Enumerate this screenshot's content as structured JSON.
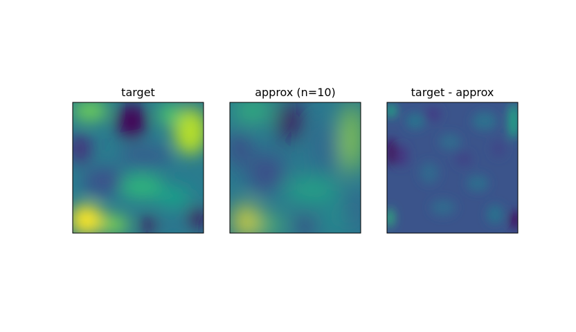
{
  "chart_data": [
    {
      "type": "heatmap",
      "title": "target",
      "colormap": "viridis",
      "colorbar": false,
      "axes_ticks": false
    },
    {
      "type": "heatmap",
      "title": "approx (n=10)",
      "colormap": "viridis",
      "colorbar": false,
      "axes_ticks": false
    },
    {
      "type": "heatmap",
      "title": "target - approx",
      "colormap": "viridis",
      "colorbar": false,
      "axes_ticks": false
    }
  ]
}
